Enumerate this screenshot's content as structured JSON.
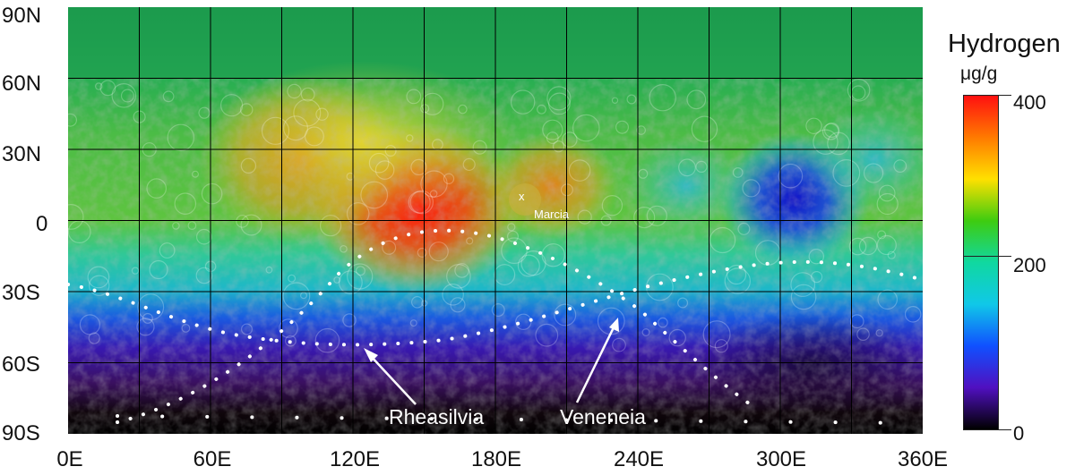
{
  "map": {
    "y_axis_labels": [
      "90N",
      "60N",
      "30N",
      "0",
      "30S",
      "60S",
      "90S"
    ],
    "x_axis_labels": [
      "0E",
      "60E",
      "120E",
      "180E",
      "240E",
      "300E",
      "360E"
    ],
    "annotations": {
      "marcia_marker": "x",
      "marcia": "Marcia",
      "rheasilvia": "Rheasilvia",
      "veneneia": "Veneneia"
    },
    "grid_spacing_deg": 30
  },
  "colorbar": {
    "title": "Hydrogen",
    "unit": "μg/g",
    "ticks": [
      "400",
      "200",
      "0"
    ],
    "colors": [
      "#ff1010",
      "#ff7a00",
      "#ffe000",
      "#3ecc10",
      "#10d8a0",
      "#10c8e8",
      "#1050ff",
      "#5010c0",
      "#000000"
    ]
  }
}
